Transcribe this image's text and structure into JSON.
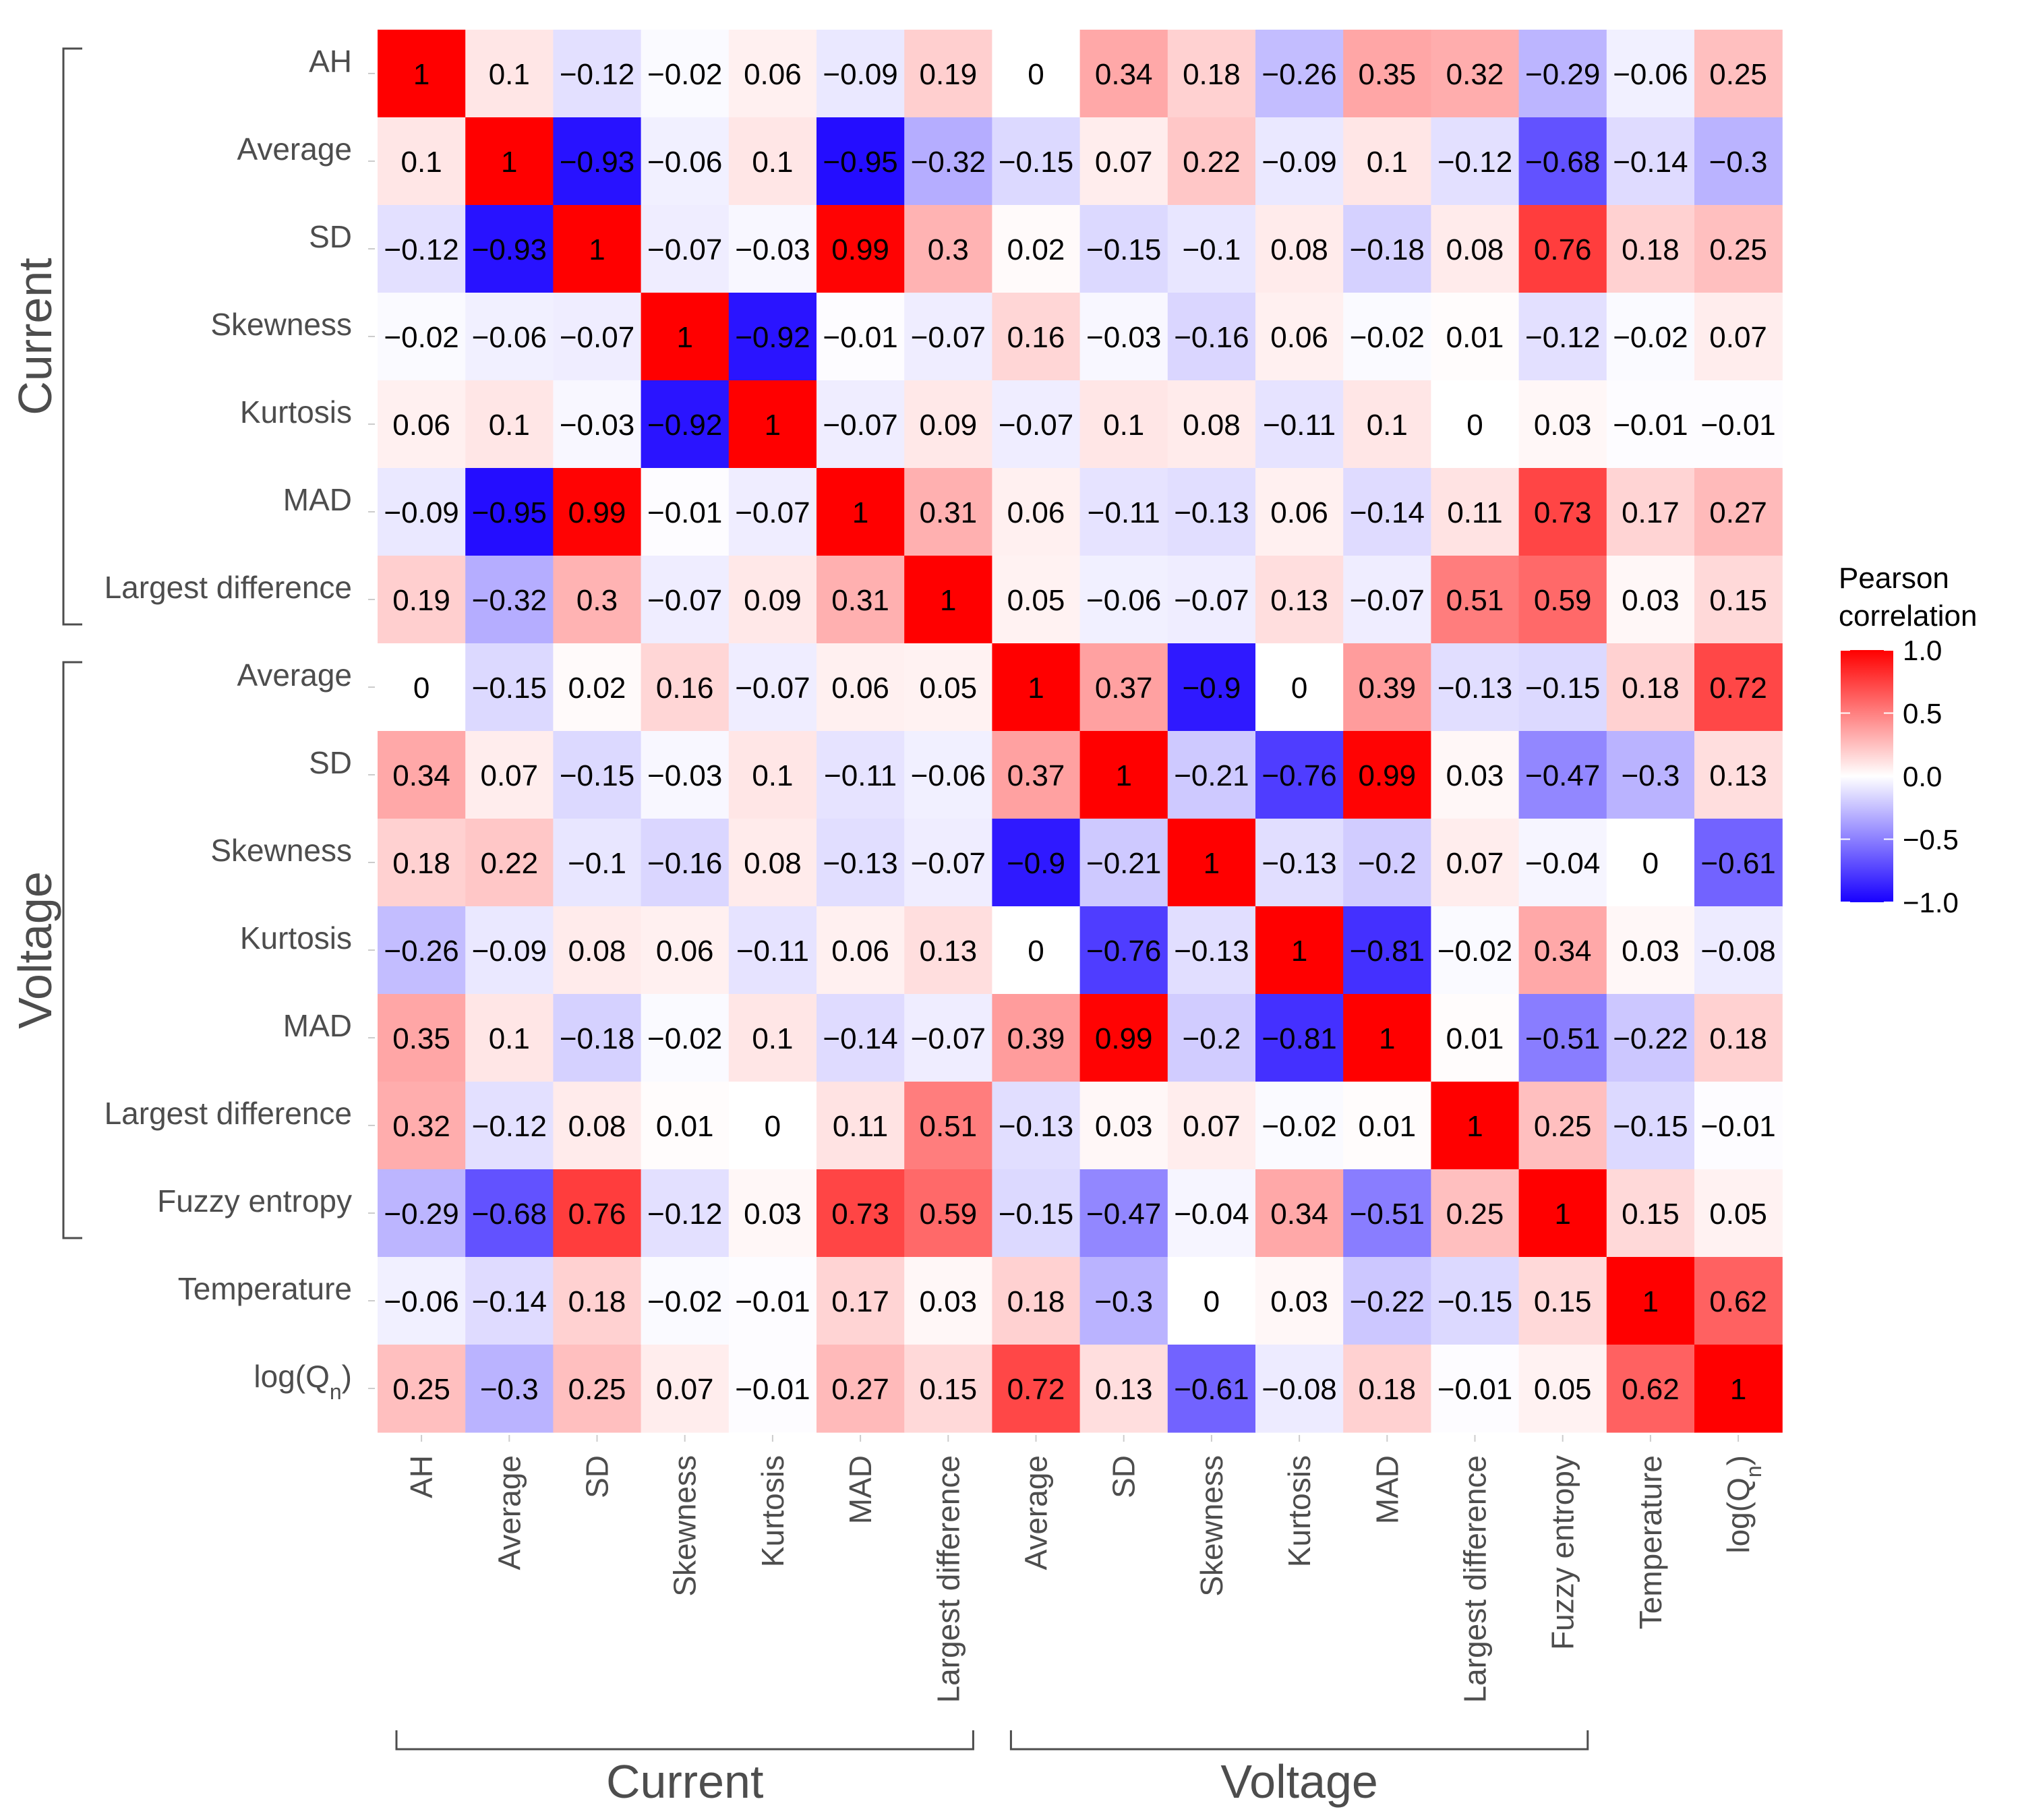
{
  "chart_data": {
    "type": "heatmap",
    "row_labels": [
      "AH",
      "Average",
      "SD",
      "Skewness",
      "Kurtosis",
      "MAD",
      "Largest difference",
      "Average",
      "SD",
      "Skewness",
      "Kurtosis",
      "MAD",
      "Largest difference",
      "Fuzzy entropy",
      "Temperature",
      "log(Q)"
    ],
    "col_labels": [
      "AH",
      "Average",
      "SD",
      "Skewness",
      "Kurtosis",
      "MAD",
      "Largest difference",
      "Average",
      "SD",
      "Skewness",
      "Kurtosis",
      "MAD",
      "Largest difference",
      "Fuzzy entropy",
      "Temperature",
      "log(Q)"
    ],
    "logq_subscript": "n",
    "matrix": [
      [
        1,
        0.1,
        -0.12,
        -0.02,
        0.06,
        -0.09,
        0.19,
        0,
        0.34,
        0.18,
        -0.26,
        0.35,
        0.32,
        -0.29,
        -0.06,
        0.25
      ],
      [
        0.1,
        1,
        -0.93,
        -0.06,
        0.1,
        -0.95,
        -0.32,
        -0.15,
        0.07,
        0.22,
        -0.09,
        0.1,
        -0.12,
        -0.68,
        -0.14,
        -0.3
      ],
      [
        -0.12,
        -0.93,
        1,
        -0.07,
        -0.03,
        0.99,
        0.3,
        0.02,
        -0.15,
        -0.1,
        0.08,
        -0.18,
        0.08,
        0.76,
        0.18,
        0.25
      ],
      [
        -0.02,
        -0.06,
        -0.07,
        1,
        -0.92,
        -0.01,
        -0.07,
        0.16,
        -0.03,
        -0.16,
        0.06,
        -0.02,
        0.01,
        -0.12,
        -0.02,
        0.07
      ],
      [
        0.06,
        0.1,
        -0.03,
        -0.92,
        1,
        -0.07,
        0.09,
        -0.07,
        0.1,
        0.08,
        -0.11,
        0.1,
        0,
        0.03,
        -0.01,
        -0.01
      ],
      [
        -0.09,
        -0.95,
        0.99,
        -0.01,
        -0.07,
        1,
        0.31,
        0.06,
        -0.11,
        -0.13,
        0.06,
        -0.14,
        0.11,
        0.73,
        0.17,
        0.27
      ],
      [
        0.19,
        -0.32,
        0.3,
        -0.07,
        0.09,
        0.31,
        1,
        0.05,
        -0.06,
        -0.07,
        0.13,
        -0.07,
        0.51,
        0.59,
        0.03,
        0.15
      ],
      [
        0,
        -0.15,
        0.02,
        0.16,
        -0.07,
        0.06,
        0.05,
        1,
        0.37,
        -0.9,
        0,
        0.39,
        -0.13,
        -0.15,
        0.18,
        0.72
      ],
      [
        0.34,
        0.07,
        -0.15,
        -0.03,
        0.1,
        -0.11,
        -0.06,
        0.37,
        1,
        -0.21,
        -0.76,
        0.99,
        0.03,
        -0.47,
        -0.3,
        0.13
      ],
      [
        0.18,
        0.22,
        -0.1,
        -0.16,
        0.08,
        -0.13,
        -0.07,
        -0.9,
        -0.21,
        1,
        -0.13,
        -0.2,
        0.07,
        -0.04,
        0,
        -0.61
      ],
      [
        -0.26,
        -0.09,
        0.08,
        0.06,
        -0.11,
        0.06,
        0.13,
        0,
        -0.76,
        -0.13,
        1,
        -0.81,
        -0.02,
        0.34,
        0.03,
        -0.08
      ],
      [
        0.35,
        0.1,
        -0.18,
        -0.02,
        0.1,
        -0.14,
        -0.07,
        0.39,
        0.99,
        -0.2,
        -0.81,
        1,
        0.01,
        -0.51,
        -0.22,
        0.18
      ],
      [
        0.32,
        -0.12,
        0.08,
        0.01,
        0,
        0.11,
        0.51,
        -0.13,
        0.03,
        0.07,
        -0.02,
        0.01,
        1,
        0.25,
        -0.15,
        -0.01
      ],
      [
        -0.29,
        -0.68,
        0.76,
        -0.12,
        0.03,
        0.73,
        0.59,
        -0.15,
        -0.47,
        -0.04,
        0.34,
        -0.51,
        0.25,
        1,
        0.15,
        0.05
      ],
      [
        -0.06,
        -0.14,
        0.18,
        -0.02,
        -0.01,
        0.17,
        0.03,
        0.18,
        -0.3,
        0,
        0.03,
        -0.22,
        -0.15,
        0.15,
        1,
        0.62
      ],
      [
        0.25,
        -0.3,
        0.25,
        0.07,
        -0.01,
        0.27,
        0.15,
        0.72,
        0.13,
        -0.61,
        -0.08,
        0.18,
        -0.01,
        0.05,
        0.62,
        1
      ]
    ],
    "row_groups": [
      {
        "label": "Current",
        "from": 0,
        "to": 6
      },
      {
        "label": "Voltage",
        "from": 7,
        "to": 13
      }
    ],
    "col_groups": [
      {
        "label": "Current",
        "from": 0,
        "to": 6
      },
      {
        "label": "Voltage",
        "from": 7,
        "to": 13
      }
    ],
    "legend": {
      "title_lines": [
        "Pearson",
        "correlation"
      ],
      "ticks": [
        "1.0",
        "0.5",
        "0.0",
        "−0.5",
        "−1.0"
      ],
      "tick_values": [
        1,
        0.5,
        0,
        -0.5,
        -1
      ],
      "placement": "right"
    },
    "colors": {
      "low": "#1800ff",
      "mid": "#ffffff",
      "high": "#ff0000"
    },
    "value_range": [
      -1,
      1
    ]
  }
}
